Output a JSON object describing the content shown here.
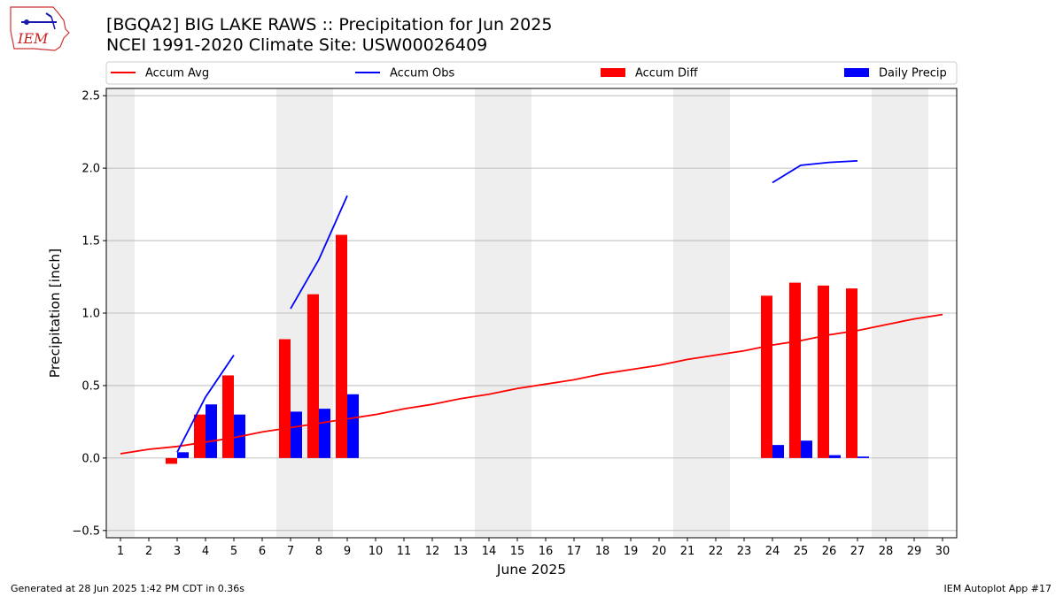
{
  "header": {
    "title_line1": "[BGQA2] BIG LAKE RAWS :: Precipitation for Jun 2025",
    "title_line2": "NCEI 1991-2020 Climate Site: USW00026409",
    "logo_text": "IEM"
  },
  "footer": {
    "generated": "Generated at 28 Jun 2025 1:42 PM CDT in 0.36s",
    "app": "IEM Autoplot App #17"
  },
  "chart_data": {
    "type": "bar",
    "xlabel": "June 2025",
    "ylabel": "Precipitation [inch]",
    "xlim": [
      0.5,
      30.5
    ],
    "ylim": [
      -0.55,
      2.55
    ],
    "yticks": [
      -0.5,
      0.0,
      0.5,
      1.0,
      1.5,
      2.0,
      2.5
    ],
    "ytick_labels": [
      "−0.5",
      "0.0",
      "0.5",
      "1.0",
      "1.5",
      "2.0",
      "2.5"
    ],
    "x": [
      1,
      2,
      3,
      4,
      5,
      6,
      7,
      8,
      9,
      10,
      11,
      12,
      13,
      14,
      15,
      16,
      17,
      18,
      19,
      20,
      21,
      22,
      23,
      24,
      25,
      26,
      27,
      28,
      29,
      30
    ],
    "grid": "horizontal",
    "legend_position": "top",
    "weekend_bands": [
      [
        1,
        1
      ],
      [
        7,
        8
      ],
      [
        14,
        15
      ],
      [
        21,
        22
      ],
      [
        28,
        29
      ]
    ],
    "colors": {
      "avg": "#ff0000",
      "obs": "#0000ff",
      "diff": "#ff0000",
      "daily": "#0000ff",
      "band": "#eeeeee",
      "grid": "#b0b0b0"
    },
    "series": [
      {
        "name": "Accum Avg",
        "kind": "line",
        "color": "#ff0000",
        "values": [
          0.03,
          0.06,
          0.08,
          0.11,
          0.14,
          0.18,
          0.21,
          0.24,
          0.27,
          0.3,
          0.34,
          0.37,
          0.41,
          0.44,
          0.48,
          0.51,
          0.54,
          0.58,
          0.61,
          0.64,
          0.68,
          0.71,
          0.74,
          0.78,
          0.81,
          0.85,
          0.88,
          0.92,
          0.96,
          0.99
        ]
      },
      {
        "name": "Accum Obs",
        "kind": "line",
        "color": "#0000ff",
        "values": [
          null,
          null,
          0.04,
          0.42,
          0.71,
          null,
          1.03,
          1.37,
          1.81,
          null,
          null,
          null,
          null,
          null,
          null,
          null,
          null,
          null,
          null,
          null,
          null,
          null,
          null,
          1.9,
          2.02,
          2.04,
          2.05,
          null,
          null,
          null
        ]
      },
      {
        "name": "Accum Diff",
        "kind": "bar",
        "color": "#ff0000",
        "values": [
          null,
          null,
          -0.04,
          0.3,
          0.57,
          null,
          0.82,
          1.13,
          1.54,
          null,
          null,
          null,
          null,
          null,
          null,
          null,
          null,
          null,
          null,
          null,
          null,
          null,
          null,
          1.12,
          1.21,
          1.19,
          1.17,
          null,
          null,
          null
        ]
      },
      {
        "name": "Daily Precip",
        "kind": "bar",
        "color": "#0000ff",
        "values": [
          null,
          null,
          0.04,
          0.37,
          0.3,
          null,
          0.32,
          0.34,
          0.44,
          null,
          null,
          null,
          null,
          null,
          null,
          null,
          null,
          null,
          null,
          null,
          null,
          null,
          null,
          0.09,
          0.12,
          0.02,
          0.01,
          null,
          null,
          null
        ]
      }
    ]
  }
}
